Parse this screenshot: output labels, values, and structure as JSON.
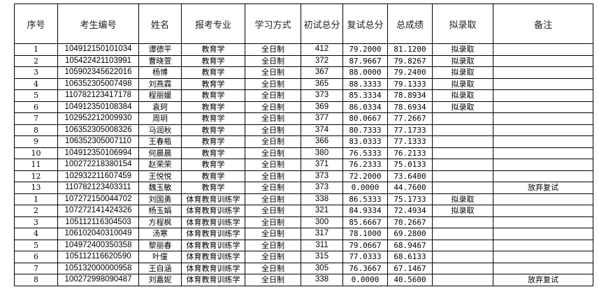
{
  "headers": [
    "序号",
    "考生编号",
    "姓名",
    "报考专业",
    "学习方式",
    "初试总分",
    "复试总分",
    "总成绩",
    "拟录取",
    "备注"
  ],
  "rows": [
    [
      "1",
      "104912150101034",
      "谭德平",
      "教育学",
      "全日制",
      "412",
      "79.2000",
      "81.1200",
      "拟录取",
      ""
    ],
    [
      "2",
      "105422421103991",
      "曹晓萱",
      "教育学",
      "全日制",
      "372",
      "87.9667",
      "79.8267",
      "拟录取",
      ""
    ],
    [
      "3",
      "105902345622016",
      "杨博",
      "教育学",
      "全日制",
      "367",
      "88.0000",
      "79.2400",
      "拟录取",
      ""
    ],
    [
      "4",
      "106352305007498",
      "刘燕霖",
      "教育学",
      "全日制",
      "365",
      "88.3333",
      "79.1333",
      "拟录取",
      ""
    ],
    [
      "5",
      "110782123417178",
      "程丽媛",
      "教育学",
      "全日制",
      "373",
      "85.3334",
      "78.8934",
      "拟录取",
      ""
    ],
    [
      "6",
      "104912350108384",
      "袁珂",
      "教育学",
      "全日制",
      "369",
      "86.0334",
      "78.6934",
      "拟录取",
      ""
    ],
    [
      "7",
      "102952212009930",
      "周玥",
      "教育学",
      "全日制",
      "377",
      "80.0667",
      "77.2667",
      "",
      ""
    ],
    [
      "8",
      "106352305008326",
      "马润秋",
      "教育学",
      "全日制",
      "374",
      "80.7333",
      "77.1733",
      "",
      ""
    ],
    [
      "9",
      "106352305007110",
      "王春瓶",
      "教育学",
      "全日制",
      "366",
      "83.0333",
      "77.1333",
      "",
      ""
    ],
    [
      "10",
      "104912350106994",
      "何晨晨",
      "教育学",
      "全日制",
      "380",
      "76.5333",
      "76.2133",
      "",
      ""
    ],
    [
      "11",
      "100272218380154",
      "赵荣荣",
      "教育学",
      "全日制",
      "371",
      "76.2333",
      "75.0133",
      "",
      ""
    ],
    [
      "12",
      "102932211607459",
      "王悦悦",
      "教育学",
      "全日制",
      "373",
      "72.2000",
      "73.6400",
      "",
      ""
    ],
    [
      "13",
      "110782123403311",
      "魏玉敏",
      "教育学",
      "全日制",
      "373",
      "0.0000",
      "44.7600",
      "",
      "放弃复试"
    ],
    [
      "1",
      "107272150044702",
      "刘国勇",
      "体育教育训练学",
      "全日制",
      "338",
      "86.5333",
      "75.1733",
      "拟录取",
      ""
    ],
    [
      "2",
      "107272141424326",
      "杨玉娟",
      "体育教育训练学",
      "全日制",
      "321",
      "84.9334",
      "72.4934",
      "拟录取",
      ""
    ],
    [
      "3",
      "105112116304503",
      "方程枫",
      "体育教育训练学",
      "全日制",
      "300",
      "85.6667",
      "70.2667",
      "",
      ""
    ],
    [
      "4",
      "106102040310049",
      "汤寒",
      "体育教育训练学",
      "全日制",
      "317",
      "78.1000",
      "69.2800",
      "",
      ""
    ],
    [
      "5",
      "104972400350358",
      "黎丽春",
      "体育教育训练学",
      "全日制",
      "311",
      "79.0667",
      "68.9467",
      "",
      ""
    ],
    [
      "6",
      "105112116620590",
      "叶僮",
      "体育教育训练学",
      "全日制",
      "315",
      "77.0333",
      "68.6133",
      "",
      ""
    ],
    [
      "7",
      "105132000000958",
      "王自涵",
      "体育教育训练学",
      "全日制",
      "305",
      "76.3667",
      "67.1467",
      "",
      ""
    ],
    [
      "8",
      "100272998090487",
      "刘嘉妮",
      "体育教育训练学",
      "全日制",
      "338",
      "0.0000",
      "40.5600",
      "",
      "放弃复试"
    ]
  ]
}
